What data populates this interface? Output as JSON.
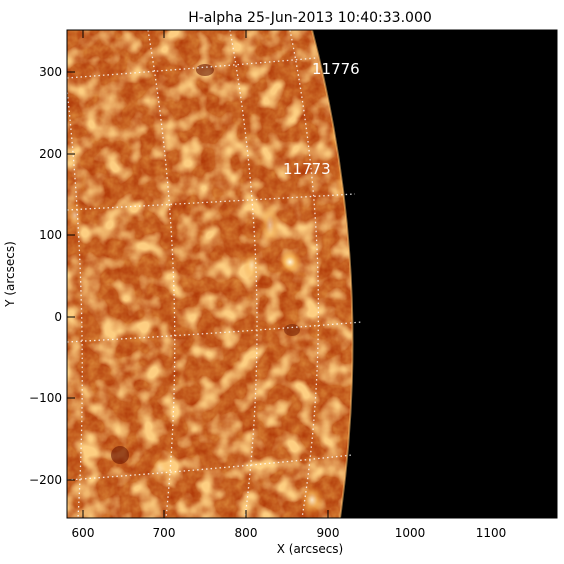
{
  "title": "H-alpha 25-Jun-2013 10:40:33.000",
  "xlabel": "X (arcsecs)",
  "ylabel": "Y (arcsecs)",
  "x_ticks": [
    "600",
    "700",
    "800",
    "900",
    "1000",
    "1100"
  ],
  "y_ticks": [
    "300",
    "200",
    "100",
    "0",
    "−100",
    "−200"
  ],
  "active_regions": [
    {
      "label": "11776",
      "x": 905,
      "y": 302
    },
    {
      "label": "11773",
      "x": 870,
      "y": 183
    }
  ],
  "colors": {
    "background": "#ffffff",
    "disk_base": "#b23c0a",
    "disk_dark": "#7a1c02",
    "disk_bright": "#f2a040",
    "space": "#000000",
    "grid": "#ffffff"
  },
  "chart_data": {
    "type": "solar image",
    "x_range": [
      580,
      1180
    ],
    "y_range": [
      -250,
      350
    ],
    "grid": "heliographic lat/lon, dotted white"
  }
}
